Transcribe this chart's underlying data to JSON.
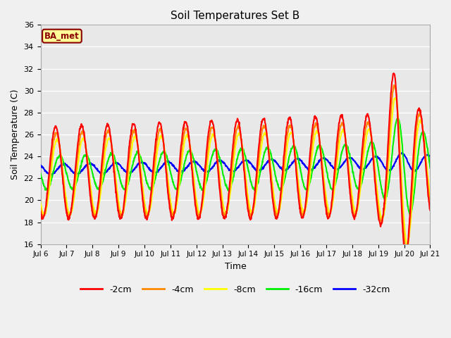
{
  "title": "Soil Temperatures Set B",
  "xlabel": "Time",
  "ylabel": "Soil Temperature (C)",
  "ylim": [
    16,
    36
  ],
  "yticks": [
    16,
    18,
    20,
    22,
    24,
    26,
    28,
    30,
    32,
    34,
    36
  ],
  "start_day": 6,
  "end_day": 21,
  "colors": {
    "-2cm": "#FF0000",
    "-4cm": "#FF8800",
    "-8cm": "#FFFF00",
    "-16cm": "#00EE00",
    "-32cm": "#0000FF"
  },
  "legend_label": "BA_met",
  "fig_bg": "#F0F0F0",
  "plot_bg": "#E8E8E8",
  "grid_color": "#FFFFFF"
}
